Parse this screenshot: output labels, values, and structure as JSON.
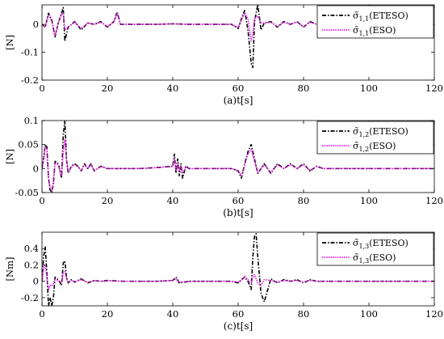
{
  "colors": {
    "etesO": "#000000",
    "eso": "#e61ee6",
    "axis": "#000000",
    "background": "#ffffff"
  },
  "chart_data": [
    {
      "type": "line",
      "caption": "(a)t[s]",
      "ylabel": "[N]",
      "xlim": [
        0,
        120
      ],
      "ylim": [
        -0.2,
        0.07
      ],
      "xticks": [
        0,
        20,
        40,
        60,
        80,
        100,
        120
      ],
      "yticks": [
        0,
        -0.1,
        -0.2
      ],
      "ytick_labels": [
        "0",
        "-0.1",
        "-0.2"
      ],
      "legend": {
        "location": "top-right",
        "entries": [
          {
            "symbol": "σ̃",
            "sub": "1,1",
            "label": "(ETESO)"
          },
          {
            "symbol": "σ̃",
            "sub": "1,1",
            "label": "(ESO)"
          }
        ]
      },
      "series": [
        {
          "style": "dashdot",
          "color": "#000000",
          "x": [
            0,
            1,
            2,
            3,
            4,
            5,
            6,
            6.5,
            7,
            8,
            10,
            12,
            14,
            16,
            18,
            20,
            22,
            23,
            24,
            26,
            30,
            35,
            40,
            45,
            50,
            55,
            58,
            60,
            61,
            62,
            63,
            64,
            64.5,
            65,
            66,
            67,
            68,
            70,
            72,
            74,
            76,
            78,
            80,
            82,
            84,
            86,
            90,
            95,
            100,
            105,
            110,
            115,
            120
          ],
          "y": [
            0,
            -0.01,
            0.04,
            0.015,
            -0.045,
            0.005,
            0.04,
            0.06,
            -0.06,
            -0.01,
            0.01,
            -0.02,
            0.005,
            0,
            0.01,
            -0.01,
            0.01,
            0.045,
            0,
            0,
            0,
            0,
            0.002,
            0,
            0,
            0,
            0,
            -0.015,
            0.02,
            0.05,
            -0.02,
            -0.14,
            -0.155,
            0.01,
            0.07,
            -0.02,
            0.005,
            0.01,
            -0.01,
            0.01,
            0,
            0.01,
            -0.01,
            0.01,
            0,
            0,
            0,
            0,
            0,
            0,
            0,
            0,
            0
          ]
        },
        {
          "style": "dotted",
          "color": "#e61ee6",
          "x": [
            0,
            1,
            2,
            3,
            4,
            5,
            6,
            6.5,
            7,
            8,
            10,
            12,
            14,
            16,
            18,
            20,
            22,
            23,
            24,
            26,
            30,
            35,
            40,
            45,
            50,
            55,
            58,
            60,
            61,
            62,
            63,
            64,
            64.5,
            65,
            66,
            67,
            68,
            70,
            72,
            74,
            76,
            78,
            80,
            82,
            84,
            86,
            90,
            95,
            100,
            105,
            110,
            115,
            120
          ],
          "y": [
            0,
            -0.01,
            0.035,
            0.01,
            -0.04,
            0.005,
            0.035,
            0.04,
            -0.02,
            -0.01,
            0.008,
            -0.015,
            0.005,
            0,
            0.008,
            -0.008,
            0.008,
            0.04,
            0,
            0,
            0,
            0,
            0.002,
            0,
            0,
            0,
            0,
            -0.01,
            0.015,
            0.04,
            0.02,
            -0.06,
            -0.03,
            0.02,
            0.03,
            0.005,
            0.005,
            0.008,
            -0.008,
            0.008,
            0,
            0.008,
            -0.008,
            0.008,
            0,
            0,
            0,
            0,
            0,
            0,
            0,
            0,
            0
          ]
        }
      ]
    },
    {
      "type": "line",
      "caption": "(b)t[s]",
      "ylabel": "[N]",
      "xlim": [
        0,
        120
      ],
      "ylim": [
        -0.05,
        0.1
      ],
      "xticks": [
        0,
        20,
        40,
        60,
        80,
        100,
        120
      ],
      "yticks": [
        0.1,
        0.05,
        0,
        -0.05
      ],
      "ytick_labels": [
        "0.1",
        "0.05",
        "0",
        "-0.05"
      ],
      "legend": {
        "location": "top-right",
        "entries": [
          {
            "symbol": "σ̃",
            "sub": "1,2",
            "label": "(ETESO)"
          },
          {
            "symbol": "σ̃",
            "sub": "1,2",
            "label": "(ESO)"
          }
        ]
      },
      "series": [
        {
          "style": "dashdot",
          "color": "#000000",
          "x": [
            0,
            0.5,
            1,
            1.5,
            2,
            2.5,
            3,
            3.5,
            4,
            5,
            6,
            6.5,
            7,
            7.5,
            8,
            9,
            10,
            11,
            12,
            13,
            14,
            15,
            16,
            18,
            20,
            25,
            30,
            35,
            40,
            40.5,
            41,
            41.5,
            42,
            42.5,
            43,
            44,
            45,
            50,
            55,
            58,
            60,
            61,
            62,
            63,
            64,
            65,
            66,
            68,
            70,
            72,
            74,
            76,
            78,
            80,
            82,
            84,
            86,
            90,
            95,
            100,
            105,
            110,
            115,
            120
          ],
          "y": [
            0,
            0.02,
            0.05,
            0.045,
            -0.02,
            -0.045,
            -0.05,
            -0.03,
            0.015,
            0.01,
            -0.02,
            0.07,
            0.1,
            0.02,
            -0.01,
            0.005,
            0.01,
            0.005,
            -0.005,
            0.01,
            0,
            0.01,
            -0.005,
            0.005,
            0,
            0,
            0,
            0.002,
            0.005,
            0.03,
            -0.01,
            0.02,
            -0.015,
            0.01,
            -0.02,
            0.005,
            0,
            0,
            0,
            0,
            -0.005,
            -0.02,
            0.01,
            0.035,
            0.05,
            0.02,
            -0.01,
            0.01,
            -0.01,
            0.01,
            0,
            0.01,
            0,
            0.01,
            -0.005,
            0.005,
            0,
            0,
            0,
            0,
            0,
            0,
            0,
            0
          ]
        },
        {
          "style": "dotted",
          "color": "#e61ee6",
          "x": [
            0,
            0.5,
            1,
            1.5,
            2,
            2.5,
            3,
            3.5,
            4,
            5,
            6,
            6.5,
            7,
            7.5,
            8,
            9,
            10,
            11,
            12,
            13,
            14,
            15,
            16,
            18,
            20,
            25,
            30,
            35,
            40,
            40.5,
            41,
            41.5,
            42,
            42.5,
            43,
            44,
            45,
            50,
            55,
            58,
            60,
            61,
            62,
            63,
            64,
            65,
            66,
            68,
            70,
            72,
            74,
            76,
            78,
            80,
            82,
            84,
            86,
            90,
            95,
            100,
            105,
            110,
            115,
            120
          ],
          "y": [
            0,
            0.02,
            0.045,
            0.04,
            -0.02,
            -0.04,
            -0.045,
            -0.03,
            0.012,
            0.008,
            -0.015,
            0.035,
            0.06,
            0.02,
            -0.008,
            0.004,
            0.008,
            0.004,
            -0.004,
            0.008,
            0,
            0.008,
            -0.004,
            0.004,
            0,
            0,
            0,
            0.002,
            0.004,
            0.02,
            -0.005,
            0.012,
            -0.005,
            0.006,
            -0.01,
            0.004,
            0,
            0,
            0,
            0,
            -0.004,
            -0.015,
            0.008,
            0.03,
            0.04,
            0.015,
            -0.008,
            0.008,
            -0.008,
            0.008,
            0,
            0.008,
            0,
            0.008,
            -0.004,
            0.004,
            0,
            0,
            0,
            0,
            0,
            0,
            0,
            0
          ]
        }
      ]
    },
    {
      "type": "line",
      "caption": "(c)t[s]",
      "ylabel": "[Nm]",
      "xlim": [
        0,
        120
      ],
      "ylim": [
        -0.3,
        0.6
      ],
      "xticks": [
        0,
        20,
        40,
        60,
        80,
        100,
        120
      ],
      "yticks": [
        0.4,
        0.2,
        0,
        -0.2
      ],
      "ytick_labels": [
        "0.4",
        "0.2",
        "0",
        "-0.2"
      ],
      "legend": {
        "location": "top-right",
        "entries": [
          {
            "symbol": "σ̃",
            "sub": "1,3",
            "label": "(ETESO)"
          },
          {
            "symbol": "σ̃",
            "sub": "1,3",
            "label": "(ESO)"
          }
        ]
      },
      "series": [
        {
          "style": "dashdot",
          "color": "#000000",
          "x": [
            0,
            0.5,
            1,
            1.5,
            2,
            2.5,
            3,
            3.5,
            4,
            5,
            6,
            6.5,
            7,
            7.5,
            8,
            9,
            10,
            12,
            14,
            16,
            18,
            20,
            25,
            30,
            35,
            40,
            41,
            42,
            45,
            50,
            55,
            58,
            60,
            61,
            62,
            63,
            64,
            64.5,
            65,
            65.5,
            66,
            67,
            68,
            70,
            72,
            74,
            76,
            78,
            80,
            82,
            84,
            86,
            90,
            95,
            100,
            105,
            110,
            115,
            120
          ],
          "y": [
            0,
            0.3,
            0.42,
            0.1,
            -0.3,
            -0.2,
            -0.3,
            -0.2,
            0.05,
            0.02,
            -0.05,
            0.22,
            0.25,
            0.05,
            -0.02,
            0.02,
            -0.01,
            0.03,
            -0.02,
            0.01,
            0,
            0.01,
            0,
            0,
            0,
            0.01,
            0.05,
            -0.02,
            0,
            0,
            0,
            0,
            -0.02,
            0.02,
            0.05,
            0.0,
            -0.1,
            0.3,
            0.55,
            0.58,
            0.3,
            -0.15,
            -0.25,
            0.03,
            -0.02,
            0.02,
            0,
            0.02,
            -0.02,
            0.02,
            0,
            0,
            0,
            0,
            0,
            0,
            0,
            0,
            0
          ]
        },
        {
          "style": "dotted",
          "color": "#e61ee6",
          "x": [
            0,
            0.5,
            1,
            1.5,
            2,
            2.5,
            3,
            3.5,
            4,
            5,
            6,
            6.5,
            7,
            7.5,
            8,
            9,
            10,
            12,
            14,
            16,
            18,
            20,
            25,
            30,
            35,
            40,
            41,
            42,
            45,
            50,
            55,
            58,
            60,
            61,
            62,
            63,
            64,
            64.5,
            65,
            65.5,
            66,
            67,
            68,
            70,
            72,
            74,
            76,
            78,
            80,
            82,
            84,
            86,
            90,
            95,
            100,
            105,
            110,
            115,
            120
          ],
          "y": [
            0,
            0.15,
            0.2,
            0.05,
            -0.1,
            -0.05,
            -0.06,
            -0.03,
            0.02,
            0.01,
            -0.02,
            0.1,
            0.12,
            0.03,
            -0.01,
            0.01,
            -0.005,
            0.02,
            -0.01,
            0.005,
            0,
            0.005,
            0,
            0,
            0,
            0.01,
            0.03,
            -0.01,
            0,
            0,
            0,
            0,
            -0.01,
            0.01,
            0.06,
            0.02,
            -0.02,
            0.05,
            0.08,
            0.03,
            -0.02,
            -0.05,
            0.02,
            0.01,
            -0.01,
            0.01,
            0,
            0.01,
            -0.01,
            0.01,
            0,
            0,
            0,
            0,
            0,
            0,
            0,
            0,
            0
          ]
        }
      ]
    }
  ]
}
